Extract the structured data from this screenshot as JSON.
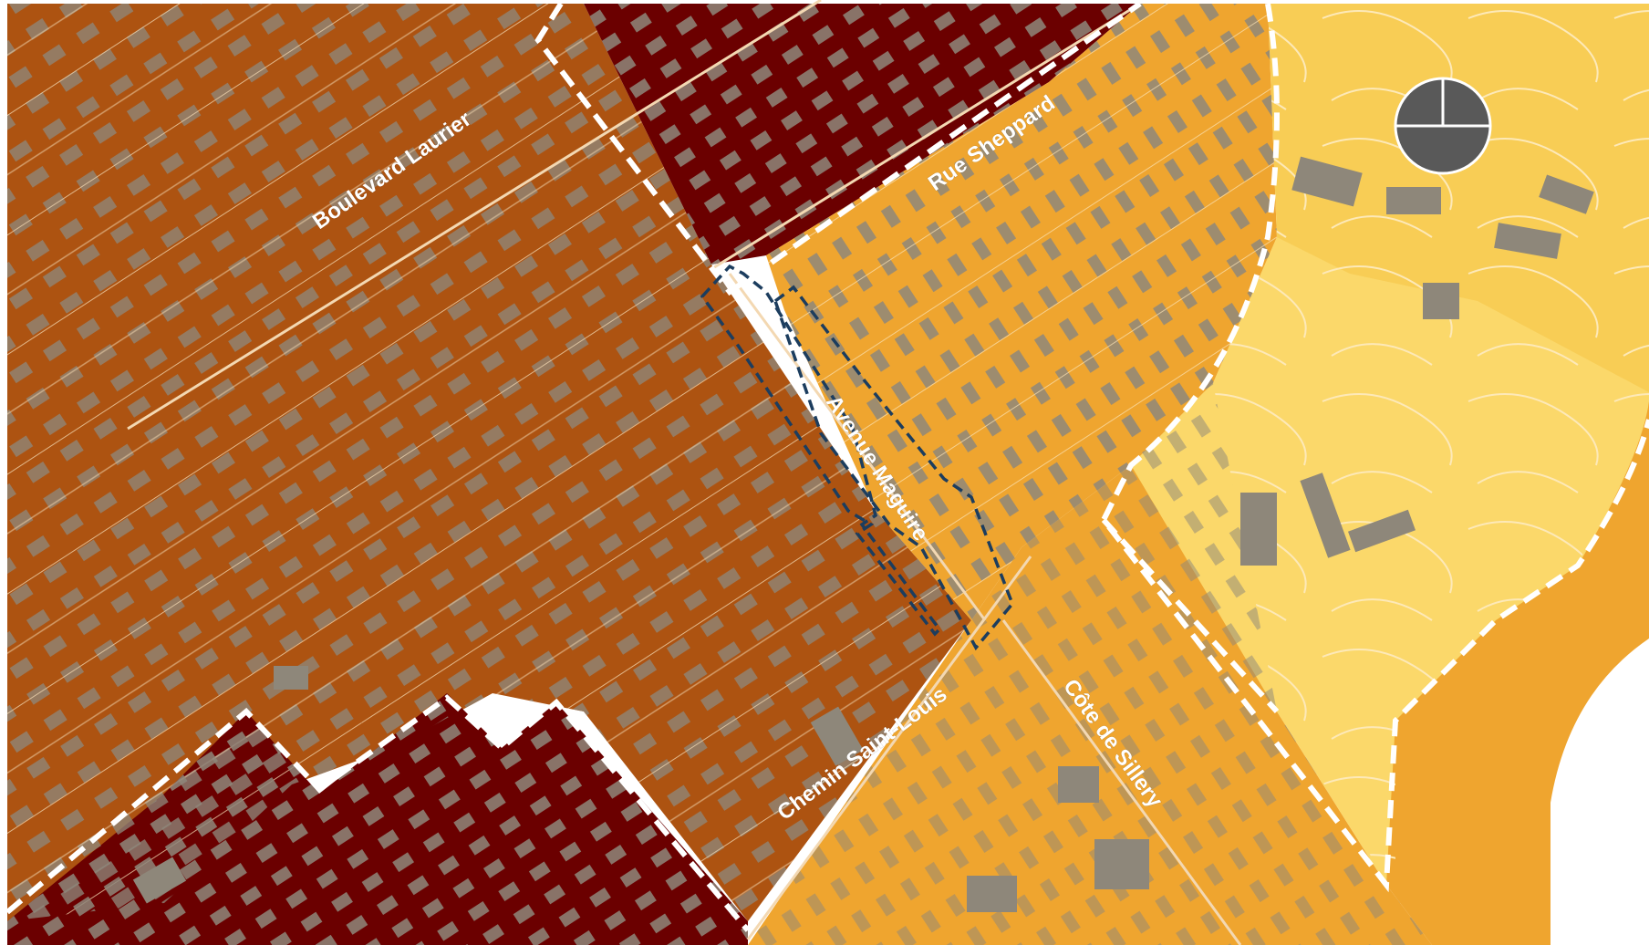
{
  "map": {
    "street_labels": {
      "boulevard_laurier": "Boulevard Laurier",
      "rue_sheppard": "Rue Sheppard",
      "avenue_maguire": "Avenue Maguire",
      "chemin_saint_louis": "Chemin Saint-Louis",
      "cote_de_sillery": "Côte de Sillery"
    },
    "zones": [
      {
        "id": "dark-red-north",
        "color": "#6b0000"
      },
      {
        "id": "dark-red-southwest",
        "color": "#6b0000"
      },
      {
        "id": "brown-west",
        "color": "#ad5311"
      },
      {
        "id": "orange-center",
        "color": "#efa52f"
      },
      {
        "id": "orange-south",
        "color": "#efa52f"
      },
      {
        "id": "yellow-east",
        "color": "#f8cd55"
      },
      {
        "id": "light-yellow-east",
        "color": "#fbd86a"
      }
    ],
    "colors": {
      "building": "#8e877a",
      "street_line": "#f3d8b2",
      "zone_boundary": "#ffffff",
      "study_area_outline": "#1c3d5e",
      "north_icon": "#595959"
    },
    "icons": [
      "north-arrow-icon"
    ]
  }
}
